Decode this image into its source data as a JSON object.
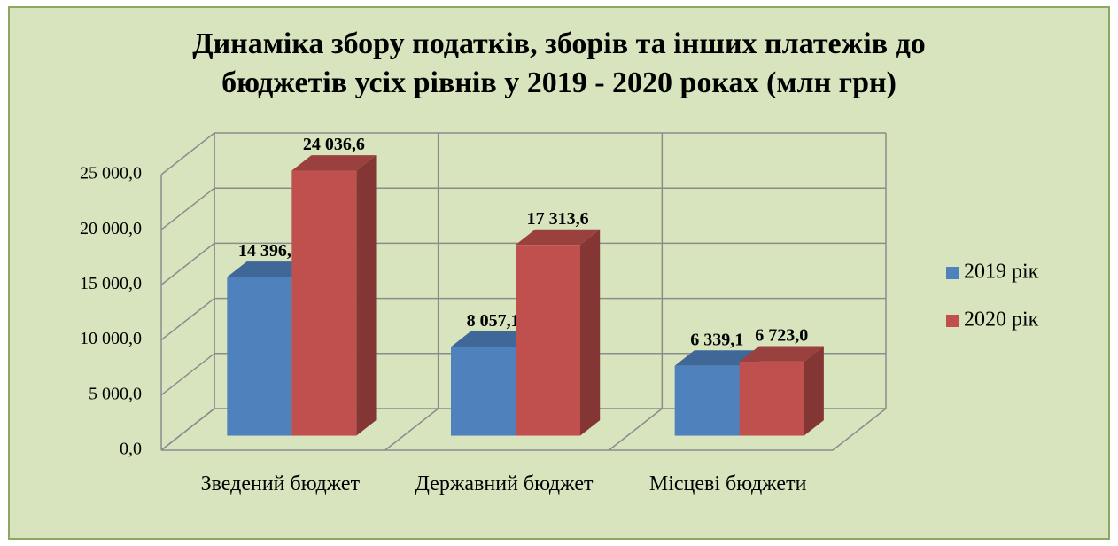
{
  "chart_data": {
    "type": "bar3d",
    "title": "Динаміка збору податків, зборів та інших платежів до бюджетів усіх рівнів у 2019 - 2020 роках (млн грн)",
    "categories": [
      "Зведений бюджет",
      "Державний бюджет",
      "Місцеві бюджети"
    ],
    "series": [
      {
        "name": "2019 рік",
        "color": "#4f81bd",
        "values": [
          14396.3,
          8057.1,
          6339.1
        ],
        "value_labels": [
          "14 396,3",
          "8 057,1",
          "6 339,1"
        ]
      },
      {
        "name": "2020 рік",
        "color": "#c0504d",
        "values": [
          24036.6,
          17313.6,
          6723.0
        ],
        "value_labels": [
          "24 036,6",
          "17 313,6",
          "6 723,0"
        ]
      }
    ],
    "ylim": [
      0,
      25000
    ],
    "yticks": [
      {
        "value": 0,
        "label": "0,0"
      },
      {
        "value": 5000,
        "label": "5 000,0"
      },
      {
        "value": 10000,
        "label": "10 000,0"
      },
      {
        "value": 15000,
        "label": "15 000,0"
      },
      {
        "value": 20000,
        "label": "20 000,0"
      },
      {
        "value": 25000,
        "label": "25 000,0"
      }
    ],
    "grid": true,
    "legend": "right"
  }
}
